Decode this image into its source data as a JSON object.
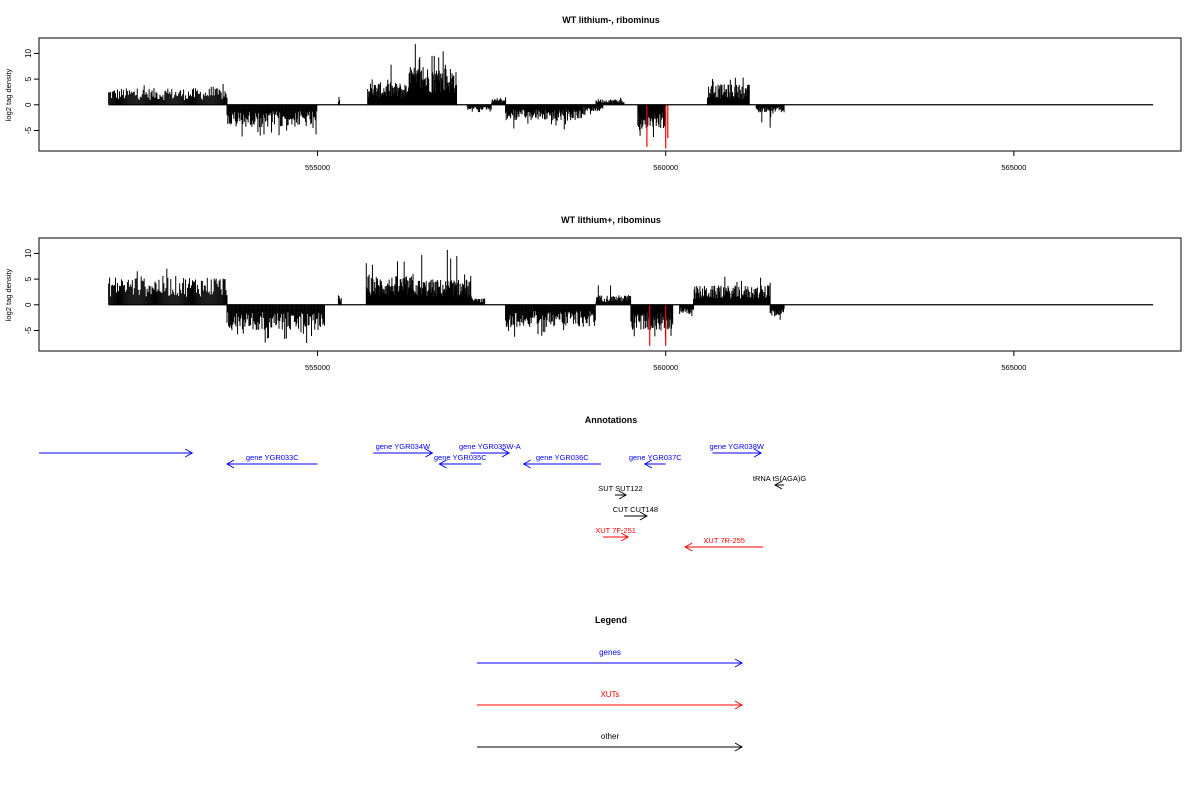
{
  "colors": {
    "gene": "#0000ff",
    "xut": "#ff0000",
    "other": "#000000",
    "bar": "#000000",
    "highlight": "#ff0000"
  },
  "chart_data": [
    {
      "type": "bar",
      "title": "WT lithium-, ribominus",
      "ylabel": "log2 tag density",
      "yticks": [
        -5,
        0,
        5,
        10
      ],
      "ylim": [
        -9,
        13
      ],
      "xlim": [
        551000,
        567400
      ],
      "xticks": [
        555000,
        560000,
        565000
      ],
      "xtick_labels": [
        "555000",
        "560000",
        "565000"
      ],
      "data_range": [
        552000,
        567000
      ],
      "segments": [
        {
          "start": 552000,
          "end": 553700,
          "sign": 1,
          "amp": 2.6,
          "max": 4.8
        },
        {
          "start": 553700,
          "end": 555000,
          "sign": -1,
          "amp": 3.5,
          "max": 6.2
        },
        {
          "start": 555300,
          "end": 555320,
          "sign": 1,
          "amp": 1.5,
          "max": 1.8
        },
        {
          "start": 555720,
          "end": 556300,
          "sign": 1,
          "amp": 3.5,
          "max": 8.0
        },
        {
          "start": 556300,
          "end": 557000,
          "sign": 1,
          "amp": 6.0,
          "max": 12.0
        },
        {
          "start": 557150,
          "end": 557500,
          "sign": -1,
          "amp": 0.8,
          "max": 1.5
        },
        {
          "start": 557500,
          "end": 557700,
          "sign": 1,
          "amp": 0.9,
          "max": 1.5
        },
        {
          "start": 557700,
          "end": 558800,
          "sign": -1,
          "amp": 2.5,
          "max": 5.0
        },
        {
          "start": 558800,
          "end": 559100,
          "sign": -1,
          "amp": 1.0,
          "max": 2.0
        },
        {
          "start": 559000,
          "end": 559400,
          "sign": 1,
          "amp": 0.9,
          "max": 2.5
        },
        {
          "start": 559600,
          "end": 560000,
          "sign": -1,
          "amp": 4.0,
          "max": 7.0
        },
        {
          "start": 560600,
          "end": 561200,
          "sign": 1,
          "amp": 3.2,
          "max": 5.6
        },
        {
          "start": 561300,
          "end": 561700,
          "sign": -1,
          "amp": 1.2,
          "max": 4.5
        }
      ],
      "highlights": [
        {
          "x": 559730,
          "value": -8.2
        },
        {
          "x": 560000,
          "value": -8.5
        },
        {
          "x": 560030,
          "value": -6.5
        }
      ]
    },
    {
      "type": "bar",
      "title": "WT lithium+, ribominus",
      "ylabel": "log2 tag density",
      "yticks": [
        -5,
        0,
        5,
        10
      ],
      "ylim": [
        -9,
        13
      ],
      "xlim": [
        551000,
        567400
      ],
      "xticks": [
        555000,
        560000,
        565000
      ],
      "xtick_labels": [
        "555000",
        "560000",
        "565000"
      ],
      "data_range": [
        552000,
        567000
      ],
      "segments": [
        {
          "start": 552000,
          "end": 553700,
          "sign": 1,
          "amp": 4.5,
          "max": 8.5
        },
        {
          "start": 553700,
          "end": 555100,
          "sign": -1,
          "amp": 4.0,
          "max": 7.5
        },
        {
          "start": 555300,
          "end": 555340,
          "sign": 1,
          "amp": 1.5,
          "max": 2.0
        },
        {
          "start": 555700,
          "end": 556400,
          "sign": 1,
          "amp": 4.5,
          "max": 9.0
        },
        {
          "start": 556400,
          "end": 557200,
          "sign": 1,
          "amp": 4.0,
          "max": 11.0
        },
        {
          "start": 557200,
          "end": 557400,
          "sign": 1,
          "amp": 1.0,
          "max": 2.0
        },
        {
          "start": 557700,
          "end": 559000,
          "sign": -1,
          "amp": 3.5,
          "max": 7.0
        },
        {
          "start": 559000,
          "end": 559500,
          "sign": 1,
          "amp": 1.5,
          "max": 4.0
        },
        {
          "start": 559500,
          "end": 560100,
          "sign": -1,
          "amp": 4.0,
          "max": 7.5
        },
        {
          "start": 560200,
          "end": 560400,
          "sign": -1,
          "amp": 1.5,
          "max": 3.0
        },
        {
          "start": 560400,
          "end": 561500,
          "sign": 1,
          "amp": 3.0,
          "max": 5.5
        },
        {
          "start": 561500,
          "end": 561700,
          "sign": -1,
          "amp": 2.0,
          "max": 5.0
        }
      ],
      "highlights": [
        {
          "x": 559770,
          "value": -8.0
        },
        {
          "x": 560000,
          "value": -8.0
        }
      ]
    }
  ],
  "annotations": {
    "title": "Annotations",
    "items": [
      {
        "label": "",
        "category": "gene",
        "start": 551000,
        "end": 553200,
        "dir": "+",
        "row": 0
      },
      {
        "label": "gene YGR033C",
        "category": "gene",
        "start": 553700,
        "end": 555000,
        "dir": "-",
        "row": 1
      },
      {
        "label": "gene YGR034W",
        "category": "gene",
        "start": 555800,
        "end": 556650,
        "dir": "+",
        "row": 0
      },
      {
        "label": "gene YGR035C",
        "category": "gene",
        "start": 556750,
        "end": 557350,
        "dir": "-",
        "row": 1
      },
      {
        "label": "gene YGR035W-A",
        "category": "gene",
        "start": 557200,
        "end": 557750,
        "dir": "+",
        "row": 0
      },
      {
        "label": "gene YGR036C",
        "category": "gene",
        "start": 557960,
        "end": 559070,
        "dir": "-",
        "row": 1
      },
      {
        "label": "gene YGR037C",
        "category": "gene",
        "start": 559700,
        "end": 560000,
        "dir": "-",
        "row": 1
      },
      {
        "label": "gene YGR038W",
        "category": "gene",
        "start": 560670,
        "end": 561370,
        "dir": "+",
        "row": 0
      },
      {
        "label": "tRNA tS(AGA)G",
        "category": "other",
        "start": 561570,
        "end": 561700,
        "dir": "-",
        "row": 2
      },
      {
        "label": "SUT SUT122",
        "category": "other",
        "start": 559270,
        "end": 559430,
        "dir": "+",
        "row": 3
      },
      {
        "label": "CUT CUT148",
        "category": "other",
        "start": 559400,
        "end": 559730,
        "dir": "+",
        "row": 4
      },
      {
        "label": "XUT 7F-251",
        "category": "xut",
        "start": 559100,
        "end": 559460,
        "dir": "+",
        "row": 5
      },
      {
        "label": "XUT 7R-255",
        "category": "xut",
        "start": 560280,
        "end": 561400,
        "dir": "-",
        "row": 6
      }
    ]
  },
  "legend": {
    "title": "Legend",
    "items": [
      {
        "label": "genes",
        "category": "gene"
      },
      {
        "label": "XUTs",
        "category": "xut"
      },
      {
        "label": "other",
        "category": "other"
      }
    ]
  }
}
